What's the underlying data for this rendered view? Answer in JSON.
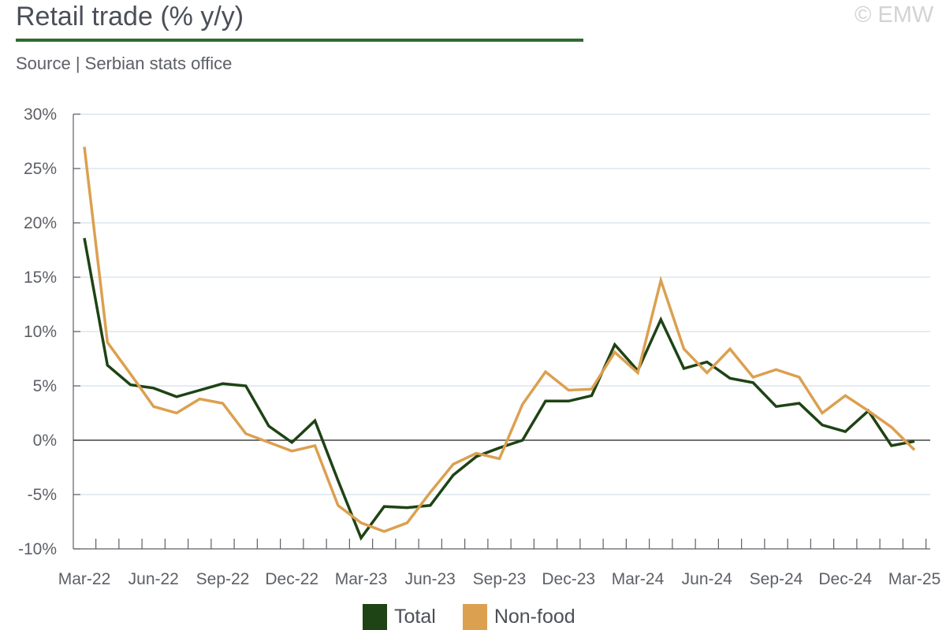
{
  "header": {
    "title": "Retail trade (% y/y)",
    "watermark": "© EMW",
    "source": "Source | Serbian stats office"
  },
  "colors": {
    "title_rule": "#2f6b2f",
    "total": "#1e4314",
    "non_food": "#dba050",
    "gridline": "#dbe6ef",
    "axis": "#5b5f66"
  },
  "chart_data": {
    "type": "line",
    "x": [
      "Mar-22",
      "Apr-22",
      "May-22",
      "Jun-22",
      "Jul-22",
      "Aug-22",
      "Sep-22",
      "Oct-22",
      "Nov-22",
      "Dec-22",
      "Jan-23",
      "Feb-23",
      "Mar-23",
      "Apr-23",
      "May-23",
      "Jun-23",
      "Jul-23",
      "Aug-23",
      "Sep-23",
      "Oct-23",
      "Nov-23",
      "Dec-23",
      "Jan-24",
      "Feb-24",
      "Mar-24",
      "Apr-24",
      "May-24",
      "Jun-24",
      "Jul-24",
      "Aug-24",
      "Sep-24",
      "Oct-24",
      "Nov-24",
      "Dec-24",
      "Jan-25",
      "Feb-25",
      "Mar-25"
    ],
    "x_tick_labels": [
      "Mar-22",
      "Jun-22",
      "Sep-22",
      "Dec-22",
      "Mar-23",
      "Jun-23",
      "Sep-23",
      "Dec-23",
      "Mar-24",
      "Jun-24",
      "Sep-24",
      "Dec-24",
      "Mar-25"
    ],
    "y_ticks": [
      "30%",
      "25%",
      "20%",
      "15%",
      "10%",
      "5%",
      "0%",
      "-5%",
      "-10%"
    ],
    "ylim": [
      -10,
      30
    ],
    "grid": true,
    "legend_position": "bottom",
    "series": [
      {
        "name": "Total",
        "values": [
          18.6,
          6.9,
          5.1,
          4.8,
          4.0,
          4.6,
          5.2,
          5.0,
          1.3,
          -0.2,
          1.8,
          -3.7,
          -9.0,
          -6.1,
          -6.2,
          -6.0,
          -3.2,
          -1.5,
          -0.7,
          0.0,
          3.6,
          3.6,
          4.1,
          8.8,
          6.4,
          11.1,
          6.6,
          7.2,
          5.7,
          5.3,
          3.1,
          3.4,
          1.4,
          0.8,
          2.7,
          -0.5,
          -0.1
        ]
      },
      {
        "name": "Non-food",
        "values": [
          27.0,
          9.0,
          6.1,
          3.1,
          2.5,
          3.8,
          3.4,
          0.6,
          -0.2,
          -1.0,
          -0.5,
          -6.0,
          -7.6,
          -8.4,
          -7.6,
          -4.8,
          -2.2,
          -1.2,
          -1.7,
          3.3,
          6.3,
          4.6,
          4.7,
          8.1,
          6.2,
          14.7,
          8.4,
          6.2,
          8.4,
          5.8,
          6.5,
          5.8,
          2.5,
          4.1,
          2.7,
          1.2,
          -0.9
        ]
      }
    ]
  }
}
